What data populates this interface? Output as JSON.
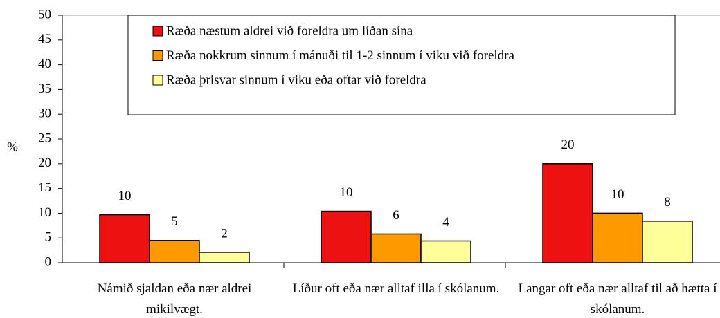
{
  "chart_data": {
    "type": "bar",
    "ylabel": "%",
    "categories": [
      "Námið sjaldan eða nær aldrei mikilvægt.",
      "Líður oft eða nær alltaf illa í skólanum.",
      "Langar oft eða nær alltaf til að hætta í skólanum."
    ],
    "series": [
      {
        "name": "Ræða næstum aldrei við foreldra um líðan sína",
        "color": "#ee1111",
        "values": [
          9.7,
          10.4,
          20
        ],
        "value_labels": [
          "10",
          "10",
          "20"
        ]
      },
      {
        "name": "Ræða nokkrum sinnum í mánuði til 1-2 sinnum í viku við foreldra",
        "color": "#ff9900",
        "values": [
          4.5,
          5.8,
          10
        ],
        "value_labels": [
          "5",
          "6",
          "10"
        ]
      },
      {
        "name": "Ræða þrisvar sinnum í viku eða oftar við foreldra",
        "color": "#ffff99",
        "values": [
          2.1,
          4.4,
          8.4
        ],
        "value_labels": [
          "2",
          "4",
          "8"
        ]
      }
    ],
    "ylim": [
      0,
      50
    ],
    "yticks": [
      0,
      5,
      10,
      15,
      20,
      25,
      30,
      35,
      40,
      45,
      50
    ],
    "grid": false
  }
}
